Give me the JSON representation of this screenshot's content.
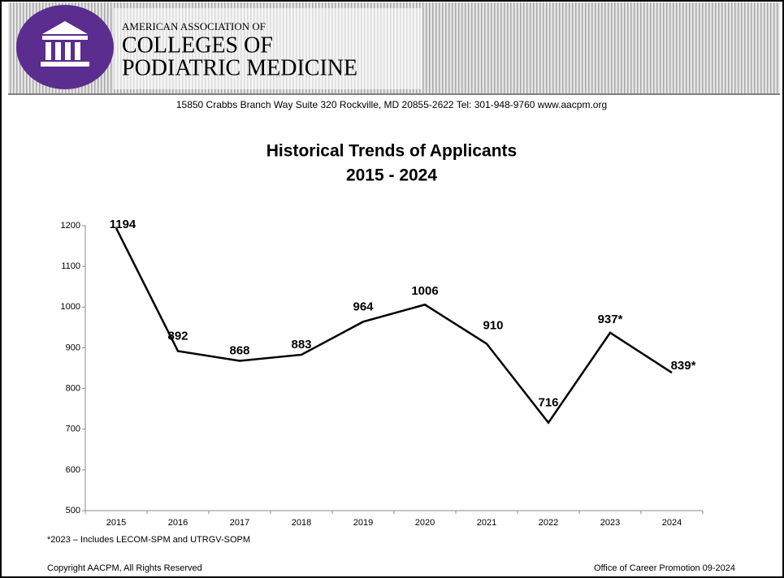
{
  "header": {
    "line1": "AMERICAN ASSOCIATION OF",
    "line2": "COLLEGES OF",
    "line3": "PODIATRIC MEDICINE",
    "address": "15850 Crabbs Branch Way Suite 320 Rockville, MD 20855-2622 Tel: 301-948-9760 www.aacpm.org"
  },
  "chart_data": {
    "type": "line",
    "title": "Historical Trends of Applicants",
    "subtitle": "2015 - 2024",
    "categories": [
      "2015",
      "2016",
      "2017",
      "2018",
      "2019",
      "2020",
      "2021",
      "2022",
      "2023",
      "2024"
    ],
    "values": [
      1194,
      892,
      868,
      883,
      964,
      1006,
      910,
      716,
      937,
      839
    ],
    "value_labels": [
      "1194",
      "892",
      "868",
      "883",
      "964",
      "1006",
      "910",
      "716",
      "937*",
      "839*"
    ],
    "color": "#000000",
    "ylim": [
      500,
      1200
    ],
    "yticks": [
      500,
      600,
      700,
      800,
      900,
      1000,
      1100,
      1200
    ],
    "grid": false
  },
  "footnote": "*2023 – Includes LECOM-SPM and UTRGV-SOPM",
  "footer": {
    "left": "Copyright AACPM, All Rights Reserved",
    "right": "Office of Career Promotion 09-2024"
  }
}
